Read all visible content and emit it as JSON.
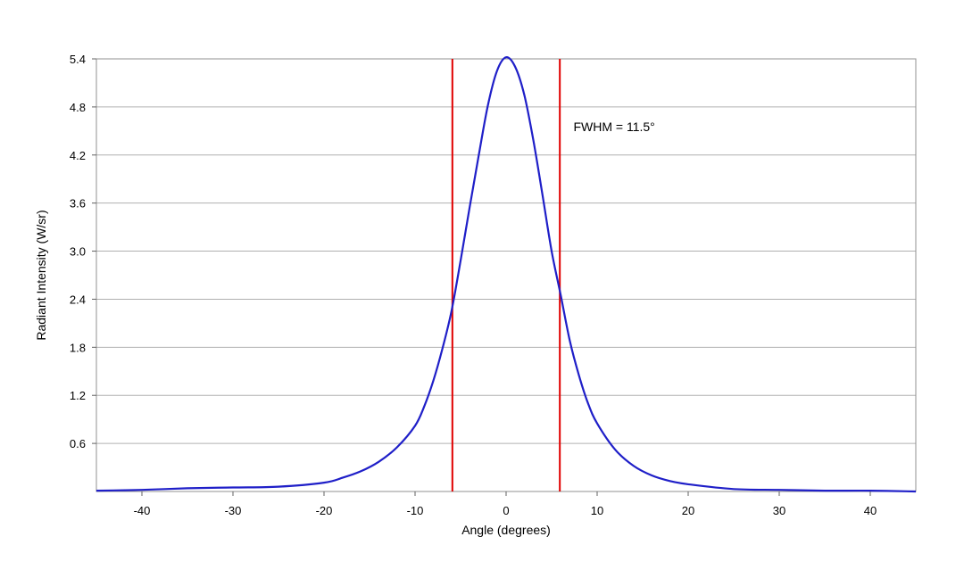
{
  "chart_data": {
    "type": "line",
    "xlabel": "Angle (degrees)",
    "ylabel": "Radiant Intensity (W/sr)",
    "xlim": [
      -45,
      45
    ],
    "ylim": [
      0,
      5.4
    ],
    "xticks": [
      -40,
      -30,
      -20,
      -10,
      0,
      10,
      20,
      30,
      40
    ],
    "yticks": [
      0.6,
      1.2,
      1.8,
      2.4,
      3.0,
      3.6,
      4.2,
      4.8,
      5.4
    ],
    "ytick_labels": [
      "0.6",
      "1.2",
      "1.8",
      "2.4",
      "3.0",
      "3.6",
      "4.2",
      "4.8",
      "5.4"
    ],
    "grid": "horizontal",
    "series": [
      {
        "color": "#1f1fc8",
        "x": [
          -45,
          -40,
          -35,
          -30,
          -25,
          -20,
          -18,
          -16,
          -14,
          -12,
          -10,
          -9,
          -8,
          -7,
          -6,
          -5,
          -4,
          -3,
          -2,
          -1,
          0,
          1,
          2,
          3,
          4,
          5,
          6,
          7,
          8,
          9,
          10,
          12,
          14,
          16,
          18,
          20,
          25,
          30,
          35,
          40,
          45
        ],
        "y": [
          0.01,
          0.02,
          0.04,
          0.05,
          0.06,
          0.11,
          0.17,
          0.25,
          0.37,
          0.55,
          0.82,
          1.06,
          1.38,
          1.78,
          2.25,
          2.88,
          3.55,
          4.2,
          4.82,
          5.25,
          5.42,
          5.3,
          4.95,
          4.38,
          3.7,
          3.0,
          2.45,
          1.88,
          1.45,
          1.1,
          0.85,
          0.52,
          0.32,
          0.2,
          0.13,
          0.09,
          0.03,
          0.02,
          0.01,
          0.01,
          0.0
        ]
      }
    ],
    "vlines": [
      {
        "x": -5.9,
        "color": "#e00000"
      },
      {
        "x": 5.9,
        "color": "#e00000"
      }
    ],
    "annotations": [
      {
        "text": "FWHM = 11.5°",
        "x": 7.4,
        "y": 4.5
      }
    ],
    "colors": {
      "grid": "#b0b0b0",
      "frame": "#909090"
    }
  }
}
